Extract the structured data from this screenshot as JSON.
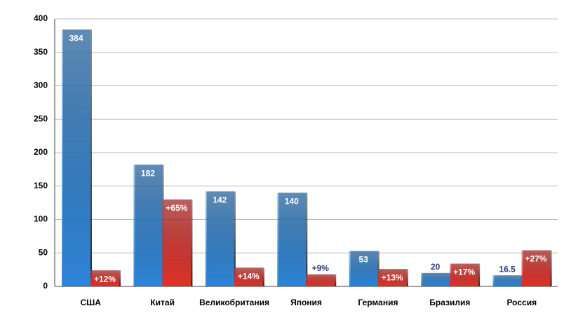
{
  "chart_data": {
    "type": "bar",
    "categories": [
      "США",
      "Китай",
      "Великобритания",
      "Япония",
      "Германия",
      "Бразилия",
      "Россия"
    ],
    "series": [
      {
        "color": "#2f86d8",
        "values": [
          384,
          182,
          142,
          140,
          53,
          20,
          16.5
        ]
      },
      {
        "color": "#e3322b",
        "axis": "y2",
        "values": [
          12,
          65,
          14,
          9,
          13,
          17,
          27
        ],
        "value_labels": [
          "+12%",
          "+65%",
          "+14%",
          "+9%",
          "+13%",
          "+17%",
          "+27%"
        ]
      }
    ],
    "ylim": [
      0,
      400
    ],
    "yticks": [
      0,
      50,
      100,
      150,
      200,
      250,
      300,
      350,
      400
    ],
    "y2lim": [
      0,
      200
    ],
    "grid": true
  }
}
